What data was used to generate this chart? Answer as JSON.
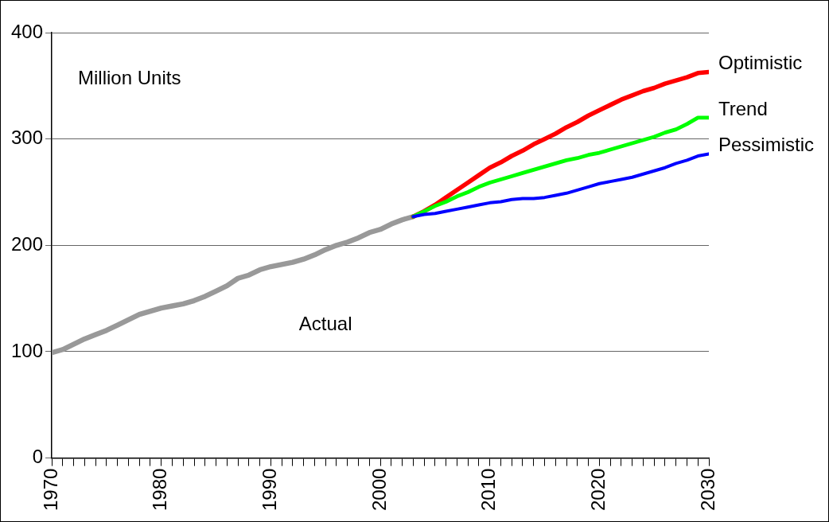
{
  "chart_data": {
    "type": "line",
    "ylabel": "Million Units",
    "xlim": [
      1970,
      2030
    ],
    "ylim": [
      0,
      400
    ],
    "xticks": [
      1970,
      {
        "value": 1971,
        "label": null
      },
      {
        "value": 1972,
        "label": null
      },
      {
        "value": 1973,
        "label": null
      },
      {
        "value": 1974,
        "label": null
      },
      {
        "value": 1975,
        "label": null
      },
      {
        "value": 1976,
        "label": null
      },
      {
        "value": 1977,
        "label": null
      },
      {
        "value": 1978,
        "label": null
      },
      {
        "value": 1979,
        "label": null
      },
      1980,
      {
        "value": 1981,
        "label": null
      },
      {
        "value": 1982,
        "label": null
      },
      {
        "value": 1983,
        "label": null
      },
      {
        "value": 1984,
        "label": null
      },
      {
        "value": 1985,
        "label": null
      },
      {
        "value": 1986,
        "label": null
      },
      {
        "value": 1987,
        "label": null
      },
      {
        "value": 1988,
        "label": null
      },
      {
        "value": 1989,
        "label": null
      },
      1990,
      {
        "value": 1991,
        "label": null
      },
      {
        "value": 1992,
        "label": null
      },
      {
        "value": 1993,
        "label": null
      },
      {
        "value": 1994,
        "label": null
      },
      {
        "value": 1995,
        "label": null
      },
      {
        "value": 1996,
        "label": null
      },
      {
        "value": 1997,
        "label": null
      },
      {
        "value": 1998,
        "label": null
      },
      {
        "value": 1999,
        "label": null
      },
      2000,
      {
        "value": 2001,
        "label": null
      },
      {
        "value": 2002,
        "label": null
      },
      {
        "value": 2003,
        "label": null
      },
      {
        "value": 2004,
        "label": null
      },
      {
        "value": 2005,
        "label": null
      },
      {
        "value": 2006,
        "label": null
      },
      {
        "value": 2007,
        "label": null
      },
      {
        "value": 2008,
        "label": null
      },
      {
        "value": 2009,
        "label": null
      },
      2010,
      {
        "value": 2011,
        "label": null
      },
      {
        "value": 2012,
        "label": null
      },
      {
        "value": 2013,
        "label": null
      },
      {
        "value": 2014,
        "label": null
      },
      {
        "value": 2015,
        "label": null
      },
      {
        "value": 2016,
        "label": null
      },
      {
        "value": 2017,
        "label": null
      },
      {
        "value": 2018,
        "label": null
      },
      {
        "value": 2019,
        "label": null
      },
      2020,
      {
        "value": 2021,
        "label": null
      },
      {
        "value": 2022,
        "label": null
      },
      {
        "value": 2023,
        "label": null
      },
      {
        "value": 2024,
        "label": null
      },
      {
        "value": 2025,
        "label": null
      },
      {
        "value": 2026,
        "label": null
      },
      {
        "value": 2027,
        "label": null
      },
      {
        "value": 2028,
        "label": null
      },
      {
        "value": 2029,
        "label": null
      },
      2030
    ],
    "yticks": [
      0,
      100,
      200,
      300,
      400
    ],
    "grid": "y",
    "legend": false,
    "marker": "none",
    "line_style": "solid",
    "series": [
      {
        "name": "Actual",
        "color": "#999999",
        "x": [
          1970,
          1971,
          1972,
          1973,
          1974,
          1975,
          1976,
          1977,
          1978,
          1979,
          1980,
          1981,
          1982,
          1983,
          1984,
          1985,
          1986,
          1987,
          1988,
          1989,
          1990,
          1991,
          1992,
          1993,
          1994,
          1995,
          1996,
          1997,
          1998,
          1999,
          2000,
          2001,
          2002,
          2003
        ],
        "values": [
          99,
          102,
          107,
          112,
          116,
          120,
          125,
          130,
          135,
          138,
          141,
          143,
          145,
          148,
          152,
          157,
          162,
          169,
          172,
          177,
          180,
          182,
          184,
          187,
          191,
          196,
          200,
          203,
          207,
          212,
          215,
          220,
          224,
          227
        ]
      },
      {
        "name": "Optimistic",
        "color": "#ff0000",
        "x": [
          2003,
          2004,
          2005,
          2006,
          2007,
          2008,
          2009,
          2010,
          2011,
          2012,
          2013,
          2014,
          2015,
          2016,
          2017,
          2018,
          2019,
          2020,
          2021,
          2022,
          2023,
          2024,
          2025,
          2026,
          2027,
          2028,
          2029,
          2030
        ],
        "values": [
          227,
          232,
          238,
          245,
          252,
          259,
          266,
          273,
          278,
          284,
          289,
          295,
          300,
          305,
          311,
          316,
          322,
          327,
          332,
          337,
          341,
          345,
          348,
          352,
          355,
          358,
          362,
          363
        ]
      },
      {
        "name": "Trend",
        "color": "#00ff00",
        "x": [
          2003,
          2004,
          2005,
          2006,
          2007,
          2008,
          2009,
          2010,
          2011,
          2012,
          2013,
          2014,
          2015,
          2016,
          2017,
          2018,
          2019,
          2020,
          2021,
          2022,
          2023,
          2024,
          2025,
          2026,
          2027,
          2028,
          2029,
          2030
        ],
        "values": [
          227,
          232,
          237,
          241,
          246,
          250,
          255,
          259,
          262,
          265,
          268,
          271,
          274,
          277,
          280,
          282,
          285,
          287,
          290,
          293,
          296,
          299,
          302,
          306,
          309,
          314,
          320,
          320
        ]
      },
      {
        "name": "Pessimistic",
        "color": "#0000ff",
        "x": [
          2003,
          2004,
          2005,
          2006,
          2007,
          2008,
          2009,
          2010,
          2011,
          2012,
          2013,
          2014,
          2015,
          2016,
          2017,
          2018,
          2019,
          2020,
          2021,
          2022,
          2023,
          2024,
          2025,
          2026,
          2027,
          2028,
          2029,
          2030
        ],
        "values": [
          227,
          229,
          230,
          232,
          234,
          236,
          238,
          240,
          241,
          243,
          244,
          244,
          245,
          247,
          249,
          252,
          255,
          258,
          260,
          262,
          264,
          267,
          270,
          273,
          277,
          280,
          284,
          286
        ]
      }
    ]
  }
}
